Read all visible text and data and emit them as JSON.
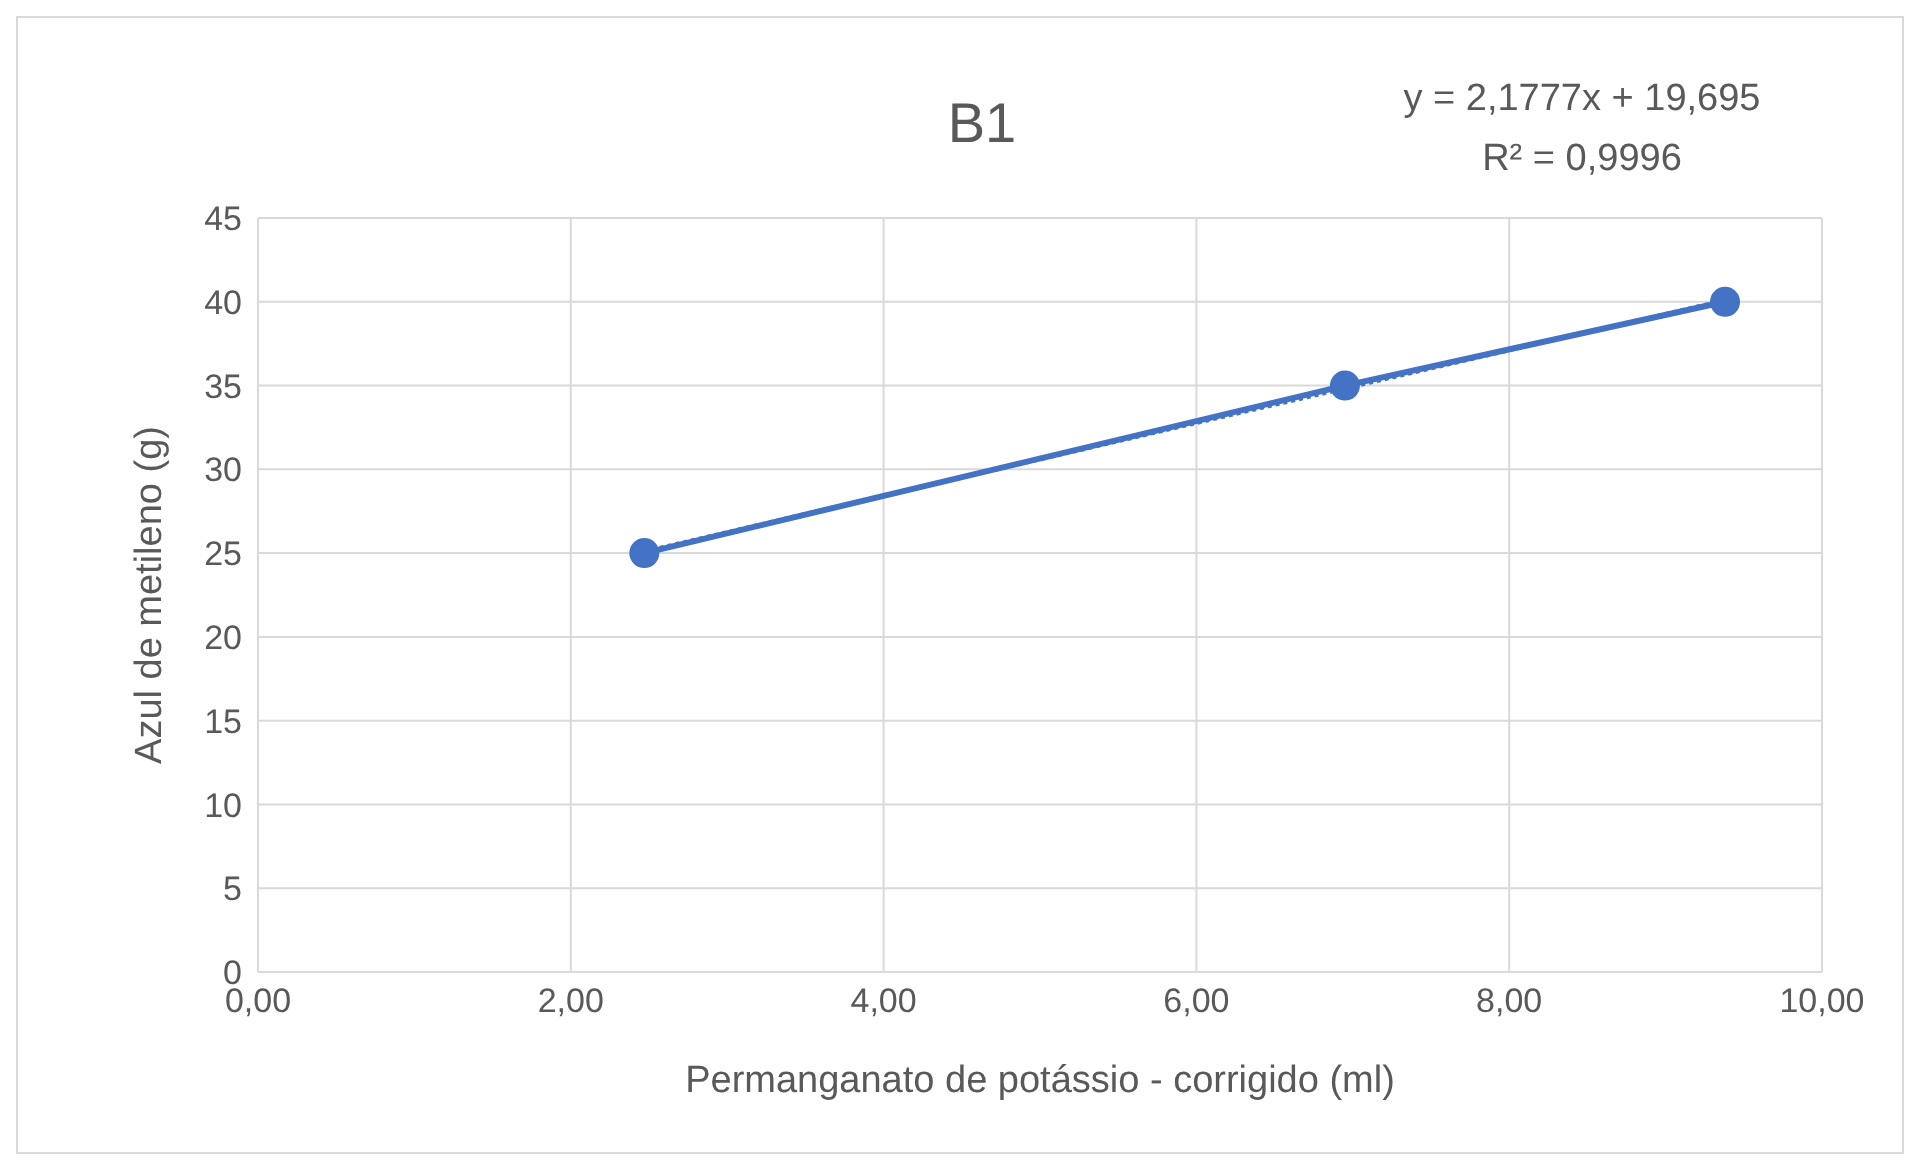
{
  "chart_data": {
    "type": "line",
    "title": "B1",
    "xlabel": "Permanganato de potássio - corrigido (ml)",
    "ylabel": "Azul de metileno (g)",
    "annotations": [
      "y = 2,1777x + 19,695",
      "R² = 0,9996"
    ],
    "series": [
      {
        "color": "#4472c4",
        "x": [
          2.47,
          6.95,
          9.38
        ],
        "values": [
          25,
          35,
          40
        ],
        "marker": "circle",
        "line_style": "solid"
      },
      {
        "color": "#4472c4",
        "x": [
          2.47,
          9.38
        ],
        "values": [
          25.1,
          40.1
        ],
        "marker": "none",
        "line_style": "dotted"
      }
    ],
    "xlim": [
      0,
      10
    ],
    "xticks": [
      {
        "value": 0,
        "label": "0,00"
      },
      {
        "value": 2,
        "label": "2,00"
      },
      {
        "value": 4,
        "label": "4,00"
      },
      {
        "value": 6,
        "label": "6,00"
      },
      {
        "value": 8,
        "label": "8,00"
      },
      {
        "value": 10,
        "label": "10,00"
      }
    ],
    "ylim": [
      0,
      45
    ],
    "yticks": [
      0,
      5,
      10,
      15,
      20,
      25,
      30,
      35,
      40,
      45
    ],
    "grid": true
  }
}
